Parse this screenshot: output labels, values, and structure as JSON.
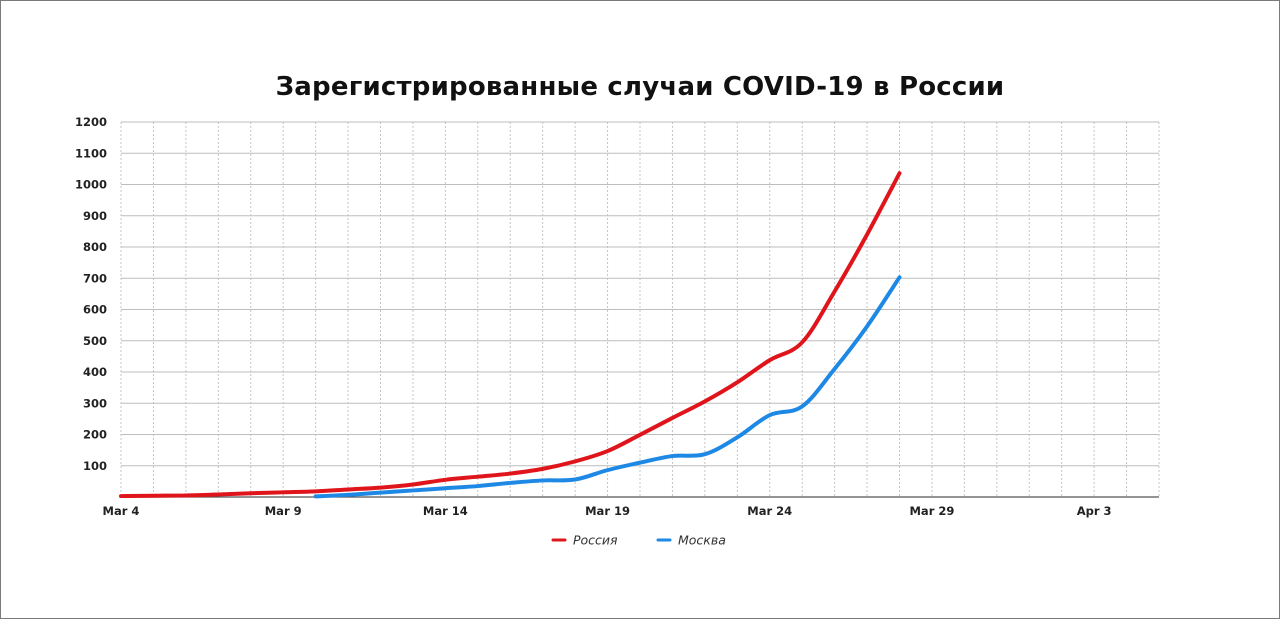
{
  "chart_data": {
    "type": "line",
    "title": "Зарегистрированные случаи COVID-19 в России",
    "xlabel": "",
    "ylabel": "",
    "x_range": [
      "2020-03-04",
      "2020-04-05"
    ],
    "x_ticks": [
      "Mar 4",
      "Mar 9",
      "Mar 14",
      "Mar 19",
      "Mar 24",
      "Mar 29",
      "Apr 3"
    ],
    "x_tick_dates": [
      "2020-03-04",
      "2020-03-09",
      "2020-03-14",
      "2020-03-19",
      "2020-03-24",
      "2020-03-29",
      "2020-04-03"
    ],
    "ylim": [
      0,
      1200
    ],
    "y_ticks": [
      100,
      200,
      300,
      400,
      500,
      600,
      700,
      800,
      900,
      1000,
      1100,
      1200
    ],
    "grid": true,
    "legend_position": "bottom",
    "series": [
      {
        "name": "Россия",
        "color": "#e0151b",
        "points": [
          [
            "2020-03-04",
            3
          ],
          [
            "2020-03-05",
            4
          ],
          [
            "2020-03-06",
            5
          ],
          [
            "2020-03-07",
            8
          ],
          [
            "2020-03-08",
            12
          ],
          [
            "2020-03-09",
            15
          ],
          [
            "2020-03-10",
            18
          ],
          [
            "2020-03-11",
            24
          ],
          [
            "2020-03-12",
            30
          ],
          [
            "2020-03-13",
            40
          ],
          [
            "2020-03-14",
            55
          ],
          [
            "2020-03-15",
            65
          ],
          [
            "2020-03-16",
            75
          ],
          [
            "2020-03-17",
            90
          ],
          [
            "2020-03-18",
            114
          ],
          [
            "2020-03-19",
            147
          ],
          [
            "2020-03-20",
            199
          ],
          [
            "2020-03-21",
            253
          ],
          [
            "2020-03-22",
            306
          ],
          [
            "2020-03-23",
            367
          ],
          [
            "2020-03-24",
            438
          ],
          [
            "2020-03-25",
            495
          ],
          [
            "2020-03-26",
            658
          ],
          [
            "2020-03-27",
            840
          ],
          [
            "2020-03-28",
            1036
          ]
        ]
      },
      {
        "name": "Москва",
        "color": "#1e88e5",
        "points": [
          [
            "2020-03-10",
            2
          ],
          [
            "2020-03-11",
            7
          ],
          [
            "2020-03-12",
            14
          ],
          [
            "2020-03-13",
            21
          ],
          [
            "2020-03-14",
            28
          ],
          [
            "2020-03-15",
            35
          ],
          [
            "2020-03-16",
            45
          ],
          [
            "2020-03-17",
            53
          ],
          [
            "2020-03-18",
            56
          ],
          [
            "2020-03-19",
            86
          ],
          [
            "2020-03-20",
            110
          ],
          [
            "2020-03-21",
            131
          ],
          [
            "2020-03-22",
            137
          ],
          [
            "2020-03-23",
            191
          ],
          [
            "2020-03-24",
            262
          ],
          [
            "2020-03-25",
            290
          ],
          [
            "2020-03-26",
            410
          ],
          [
            "2020-03-27",
            546
          ],
          [
            "2020-03-28",
            703
          ]
        ]
      }
    ]
  }
}
